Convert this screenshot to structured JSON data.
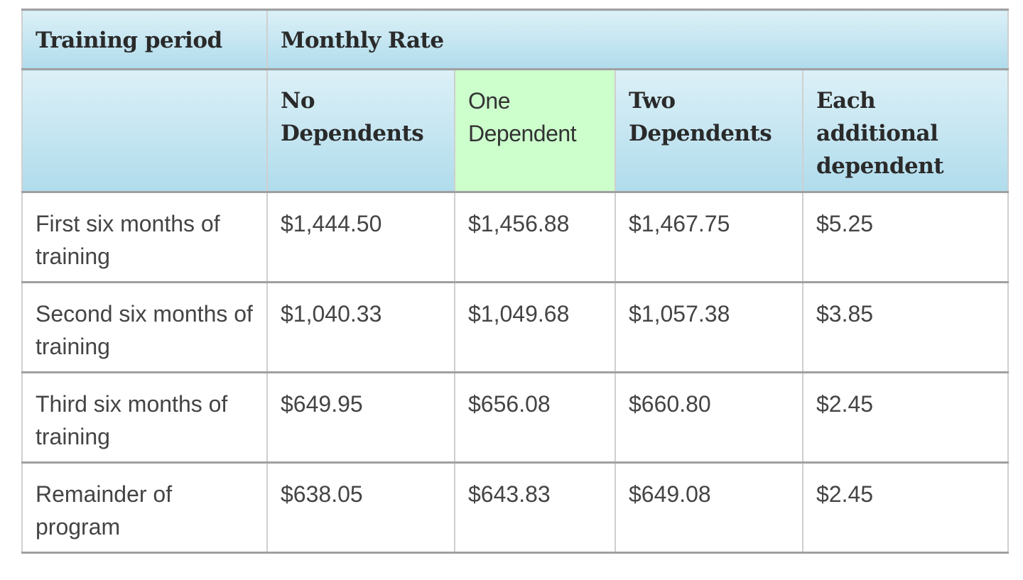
{
  "table": {
    "header_row1": [
      "Training period",
      "Monthly Rate"
    ],
    "header_row2": [
      "",
      "No Dependents",
      "One Dependent",
      "Two Dependents",
      "Each additional dependent"
    ],
    "highlight_color": "#ccffcc",
    "header_color": "#b0dcec",
    "rows": [
      [
        "First six months of training",
        "$1,444.50",
        "$1,456.88",
        "$1,467.75",
        "$5.25"
      ],
      [
        "Second six months of training",
        "$1,040.33",
        "$1,049.68",
        "$1,057.38",
        "$3.85"
      ],
      [
        "Third six months of training",
        "$649.95",
        "$656.08",
        "$660.80",
        "$2.45"
      ],
      [
        "Remainder of program",
        "$638.05",
        "$643.83",
        "$649.08",
        "$2.45"
      ]
    ]
  }
}
